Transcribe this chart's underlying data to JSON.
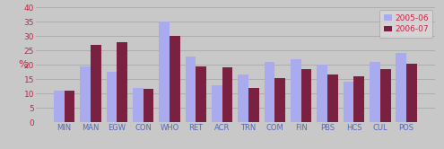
{
  "categories": [
    "MIN",
    "MAN",
    "EGW",
    "CON",
    "WHO",
    "RET",
    "ACR",
    "TRN",
    "COM",
    "FIN",
    "PBS",
    "HCS",
    "CUL",
    "POS"
  ],
  "values_2005": [
    11,
    19.5,
    17.5,
    12,
    35,
    23,
    13,
    16.5,
    21,
    22,
    20,
    14,
    21,
    24
  ],
  "values_2006": [
    11,
    27,
    28,
    11.5,
    30,
    19.5,
    19,
    12,
    15.5,
    18.5,
    16.5,
    16,
    18.5,
    20.5
  ],
  "color_2005": "#aaaaee",
  "color_2006": "#7a2040",
  "legend_2005": "2005-06",
  "legend_2006": "2006-07",
  "ylabel": "%",
  "ylim": [
    0,
    40
  ],
  "yticks": [
    0,
    5,
    10,
    15,
    20,
    25,
    30,
    35,
    40
  ],
  "background_color": "#c8c8c8",
  "plot_background": "#c8c8c8",
  "grid_color": "#b0b0b0",
  "xtick_color": "#5566bb",
  "ytick_color": "#cc2244",
  "ylabel_color": "#cc2244"
}
